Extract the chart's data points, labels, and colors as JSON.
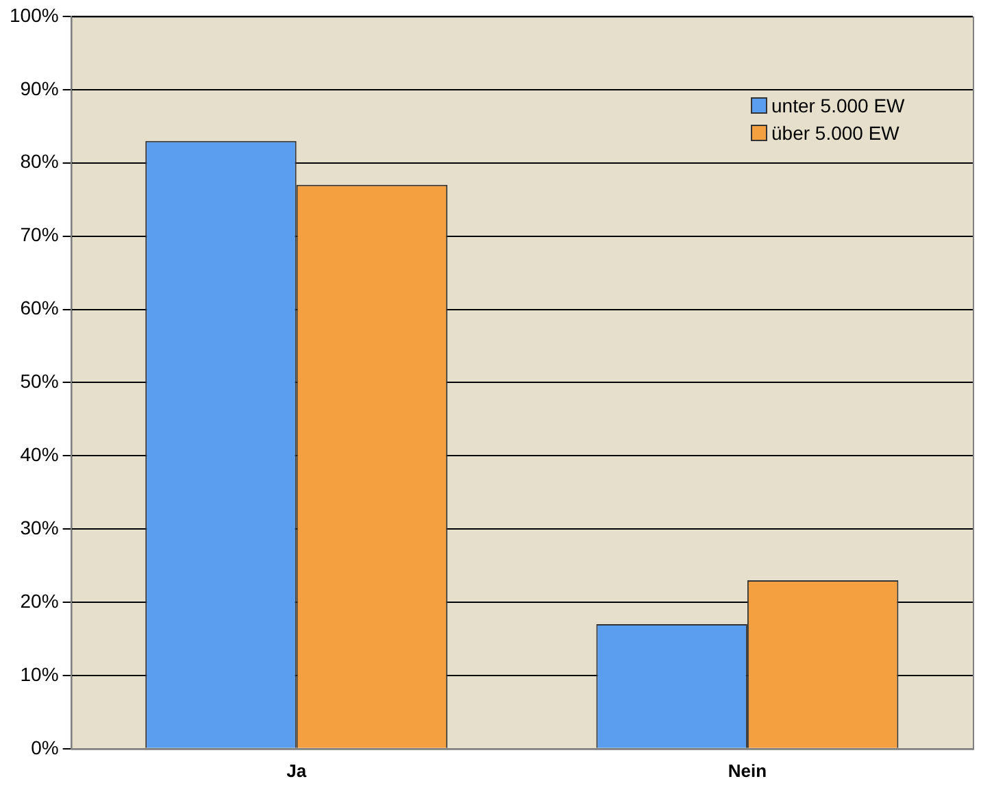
{
  "chart_data": {
    "type": "bar",
    "categories": [
      "Ja",
      "Nein"
    ],
    "series": [
      {
        "name": "unter 5.000 EW",
        "color": "#5a9ef0",
        "values": [
          83,
          17
        ]
      },
      {
        "name": "über 5.000 EW",
        "color": "#f4a040",
        "values": [
          77,
          23
        ]
      }
    ],
    "ylim": [
      0,
      100
    ],
    "yticks": [
      {
        "value": 0,
        "label": "0%"
      },
      {
        "value": 10,
        "label": "10%"
      },
      {
        "value": 20,
        "label": "20%"
      },
      {
        "value": 30,
        "label": "30%"
      },
      {
        "value": 40,
        "label": "40%"
      },
      {
        "value": 50,
        "label": "50%"
      },
      {
        "value": 60,
        "label": "60%"
      },
      {
        "value": 70,
        "label": "70%"
      },
      {
        "value": 80,
        "label": "80%"
      },
      {
        "value": 90,
        "label": "90%"
      },
      {
        "value": 100,
        "label": "100%"
      }
    ],
    "grid": "y",
    "legend": "top right"
  }
}
